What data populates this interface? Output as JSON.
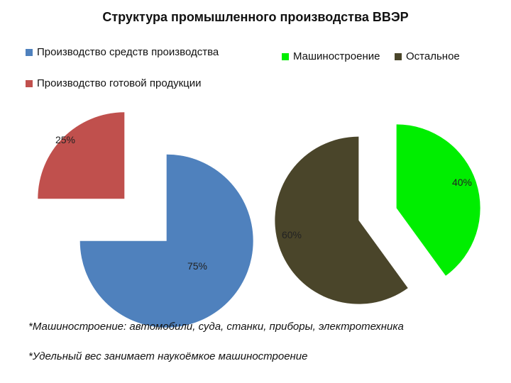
{
  "chart_data": [
    {
      "type": "pie",
      "categories": [
        "Производство средств производства",
        "Производство готовой продукции"
      ],
      "values": [
        75,
        25
      ],
      "labels": [
        "75%",
        "25%"
      ],
      "colors": [
        "#4F81BD",
        "#C0504D"
      ],
      "exploded": true
    },
    {
      "type": "pie",
      "categories": [
        "Машиностроение",
        "Остальное"
      ],
      "values": [
        40,
        60
      ],
      "labels": [
        "40%",
        "60%"
      ],
      "colors": [
        "#00EE00",
        "#4A452A"
      ],
      "exploded": true
    }
  ],
  "title": "Структура промышленного производства ВВЭР",
  "legend_left": [
    {
      "label": "Производство средств производства",
      "color": "#4F81BD"
    },
    {
      "label": "Производство готовой продукции",
      "color": "#C0504D"
    }
  ],
  "legend_right": [
    {
      "label": "Машиностроение",
      "color": "#00EE00"
    },
    {
      "label": "Остальное",
      "color": "#4A452A"
    }
  ],
  "notes": [
    "*Машиностроение: автомобили, суда, станки, приборы, электротехника",
    "*Удельный вес занимает наукоёмкое машиностроение"
  ]
}
